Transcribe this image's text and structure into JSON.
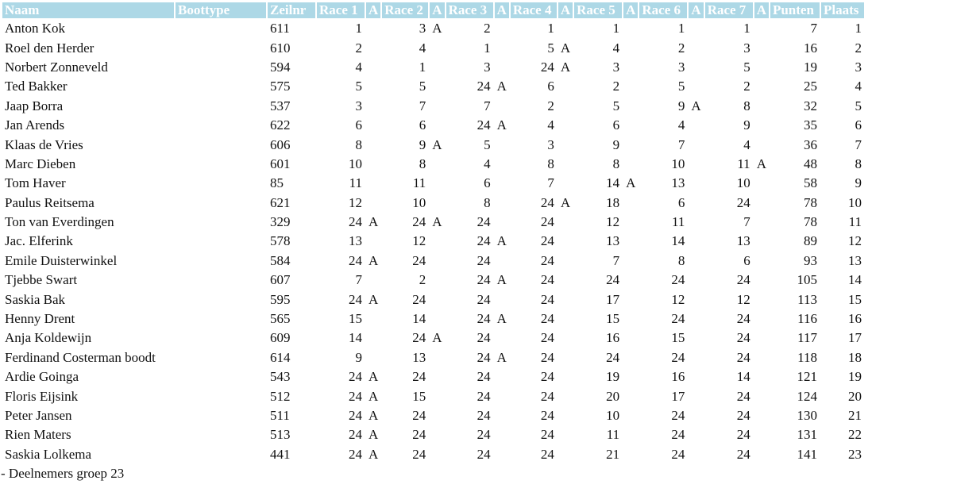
{
  "table": {
    "header": [
      "Naam",
      "Boottype",
      "Zeilnr",
      "Race 1",
      "A",
      "Race 2",
      "A",
      "Race 3",
      "A",
      "Race 4",
      "A",
      "Race 5",
      "A",
      "Race 6",
      "A",
      "Race 7",
      "A",
      "Punten",
      "Plaats"
    ],
    "rows": [
      [
        "Anton Kok",
        null,
        611,
        1,
        null,
        3,
        "A",
        2,
        null,
        1,
        null,
        1,
        null,
        1,
        null,
        1,
        null,
        7,
        1
      ],
      [
        "Roel den Herder",
        null,
        610,
        2,
        null,
        4,
        null,
        1,
        null,
        5,
        "A",
        4,
        null,
        2,
        null,
        3,
        null,
        16,
        2
      ],
      [
        "Norbert Zonneveld",
        null,
        594,
        4,
        null,
        1,
        null,
        3,
        null,
        24,
        "A",
        3,
        null,
        3,
        null,
        5,
        null,
        19,
        3
      ],
      [
        "Ted Bakker",
        null,
        575,
        5,
        null,
        5,
        null,
        24,
        "A",
        6,
        null,
        2,
        null,
        5,
        null,
        2,
        null,
        25,
        4
      ],
      [
        "Jaap Borra",
        null,
        537,
        3,
        null,
        7,
        null,
        7,
        null,
        2,
        null,
        5,
        null,
        9,
        "A",
        8,
        null,
        32,
        5
      ],
      [
        "Jan Arends",
        null,
        622,
        6,
        null,
        6,
        null,
        24,
        "A",
        4,
        null,
        6,
        null,
        4,
        null,
        9,
        null,
        35,
        6
      ],
      [
        "Klaas de Vries",
        null,
        606,
        8,
        null,
        9,
        "A",
        5,
        null,
        3,
        null,
        9,
        null,
        7,
        null,
        4,
        null,
        36,
        7
      ],
      [
        "Marc Dieben",
        null,
        601,
        10,
        null,
        8,
        null,
        4,
        null,
        8,
        null,
        8,
        null,
        10,
        null,
        11,
        "A",
        48,
        8
      ],
      [
        "Tom Haver",
        null,
        85,
        11,
        null,
        11,
        null,
        6,
        null,
        7,
        null,
        14,
        "A",
        13,
        null,
        10,
        null,
        58,
        9
      ],
      [
        "Paulus Reitsema",
        null,
        621,
        12,
        null,
        10,
        null,
        8,
        null,
        24,
        "A",
        18,
        null,
        6,
        null,
        24,
        null,
        78,
        10
      ],
      [
        "Ton van Everdingen",
        null,
        329,
        24,
        "A",
        24,
        "A",
        24,
        null,
        24,
        null,
        12,
        null,
        11,
        null,
        7,
        null,
        78,
        11
      ],
      [
        "Jac. Elferink",
        null,
        578,
        13,
        null,
        12,
        null,
        24,
        "A",
        24,
        null,
        13,
        null,
        14,
        null,
        13,
        null,
        89,
        12
      ],
      [
        "Emile Duisterwinkel",
        null,
        584,
        24,
        "A",
        24,
        null,
        24,
        null,
        24,
        null,
        7,
        null,
        8,
        null,
        6,
        null,
        93,
        13
      ],
      [
        "Tjebbe Swart",
        null,
        607,
        7,
        null,
        2,
        null,
        24,
        "A",
        24,
        null,
        24,
        null,
        24,
        null,
        24,
        null,
        105,
        14
      ],
      [
        "Saskia Bak",
        null,
        595,
        24,
        "A",
        24,
        null,
        24,
        null,
        24,
        null,
        17,
        null,
        12,
        null,
        12,
        null,
        113,
        15
      ],
      [
        "Henny Drent",
        null,
        565,
        15,
        null,
        14,
        null,
        24,
        "A",
        24,
        null,
        15,
        null,
        24,
        null,
        24,
        null,
        116,
        16
      ],
      [
        "Anja Koldewijn",
        null,
        609,
        14,
        null,
        24,
        "A",
        24,
        null,
        24,
        null,
        16,
        null,
        15,
        null,
        24,
        null,
        117,
        17
      ],
      [
        "Ferdinand Costerman boodt",
        null,
        614,
        9,
        null,
        13,
        null,
        24,
        "A",
        24,
        null,
        24,
        null,
        24,
        null,
        24,
        null,
        118,
        18
      ],
      [
        "Ardie Goinga",
        null,
        543,
        24,
        "A",
        24,
        null,
        24,
        null,
        24,
        null,
        19,
        null,
        16,
        null,
        14,
        null,
        121,
        19
      ],
      [
        "Floris Eijsink",
        null,
        512,
        24,
        "A",
        15,
        null,
        24,
        null,
        24,
        null,
        20,
        null,
        17,
        null,
        24,
        null,
        124,
        20
      ],
      [
        "Peter Jansen",
        null,
        511,
        24,
        "A",
        24,
        null,
        24,
        null,
        24,
        null,
        10,
        null,
        24,
        null,
        24,
        null,
        130,
        21
      ],
      [
        "Rien Maters",
        null,
        513,
        24,
        "A",
        24,
        null,
        24,
        null,
        24,
        null,
        11,
        null,
        24,
        null,
        24,
        null,
        131,
        22
      ],
      [
        "Saskia Lolkema",
        null,
        441,
        24,
        "A",
        24,
        null,
        24,
        null,
        24,
        null,
        21,
        null,
        24,
        null,
        24,
        null,
        141,
        23
      ]
    ]
  },
  "footer": "- Deelnemers groep 23"
}
